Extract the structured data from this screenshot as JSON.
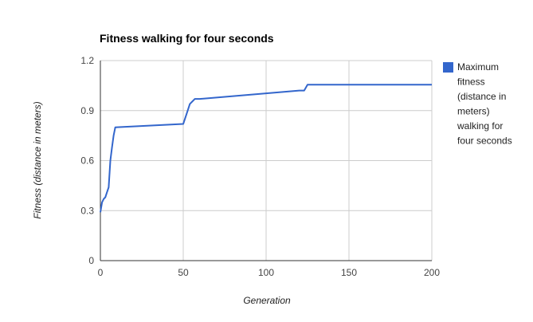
{
  "chart_data": {
    "type": "line",
    "title": "Fitness walking for four seconds",
    "xlabel": "Generation",
    "ylabel": "Fitness (distance in meters)",
    "xlim": [
      0,
      200
    ],
    "ylim": [
      0,
      1.2
    ],
    "x_ticks": [
      "0",
      "50",
      "100",
      "150",
      "200"
    ],
    "y_ticks": [
      "0",
      "0.3",
      "0.6",
      "0.9",
      "1.2"
    ],
    "grid": true,
    "legend_position": "right",
    "legend_lines": [
      "Maximum",
      "fitness",
      "(distance in",
      "meters)",
      "walking for",
      "four seconds"
    ],
    "colors": {
      "series": "#3366cc",
      "grid": "#cccccc",
      "axis": "#333333"
    },
    "series": [
      {
        "name": "Maximum fitness (distance in meters) walking for four seconds",
        "x": [
          0,
          1,
          2,
          3,
          4,
          5,
          6,
          7,
          8,
          9,
          50,
          52,
          54,
          57,
          60,
          120,
          123,
          125,
          200
        ],
        "y": [
          0.29,
          0.35,
          0.37,
          0.38,
          0.41,
          0.44,
          0.6,
          0.68,
          0.75,
          0.8,
          0.82,
          0.88,
          0.94,
          0.97,
          0.97,
          1.02,
          1.02,
          1.055,
          1.055
        ]
      }
    ]
  }
}
